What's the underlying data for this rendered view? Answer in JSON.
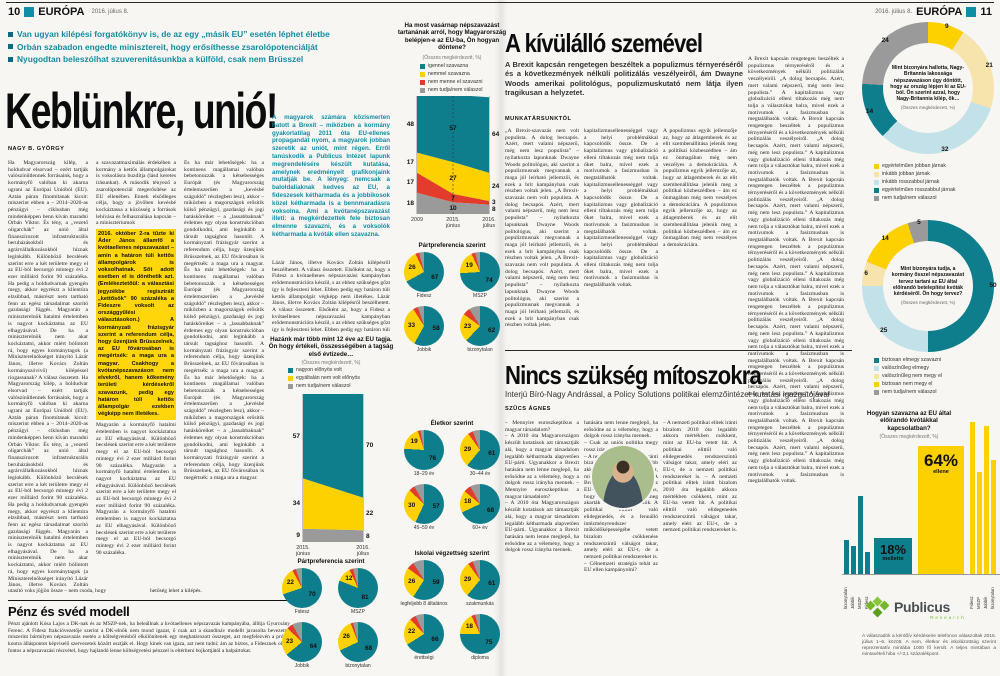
{
  "colors": {
    "teal": "#0e7e8c",
    "teal_bright": "#128da1",
    "yellow": "#fdd000",
    "red": "#e23c2d",
    "gray": "#9a9a9a",
    "cream": "#f7e3ac",
    "light_blue": "#c3e1e8",
    "highlight": "#ffd60a",
    "green": "#76b82a"
  },
  "left": {
    "page_number": "10",
    "brand": "EURÓPA",
    "date": "2016. július 8.",
    "bullets": [
      "Van ugyan kilépési forgatókönyv is, de az egy „másik EU” esetén léphet életbe",
      "Orbán szabadon engedte minisztereit, hogy erősíthesse zsarolópotenciálját",
      "Nyugodtan beleszólhat szuverenitásunkba a külföld, csak nem Brüsszel"
    ],
    "headline": "Keblünkre, unió!",
    "author": "NAGY B. GYÖRGY",
    "col1": "Ha Magyarország kilép, a holdudvar elsorvad – ezért tartják valószínűtlennek forrásaink, hogy a kormányfő valóban ki akarna ugrani az Európai Unióból (EU). Aztán páran finomítanak kicsit: miszerint ebben a – 2014–2020-as pénzügyi – ciklusban még mindenképpen benn kíván maradni Orbán Viktor. És tény, a „vezető oligarchák” az unió által finanszírozott infrastrukturális beruházásokból és agrárvállalkozásokból híznak leginkább. Különböző becslések szerint erre a két területre megy el az EU-ból becsorgó mintegy évi 2 ezer milliárd forint 90 százaléka. Ha pedig a holdudvarnak gyengén megy, akkor egyrészt a klientúra elzsibbad, másrészt nem tartható fenn az egész társadalmat szorító gazdasági függés. Magyarán a miniszterelnök hatalmi értelemben is nagyot kockáztatna az EU elhagyásával. De ha a miniszterelnök nem akar kockáztatni, akkor miért bólintott rá, hogy egyes kormánytagok (a Miniszterelnökséget irányító Lázár János, illetve Kovács Zoltán kormányszóvivő) kilépéssel riogassanak? A válasz összetett.",
    "col2a": "a szavazatmaximálás érdekében a kormány a kettős állampolgárokat is voksolásra buzdítja (lásd keretes írásunkat). A második tényező a zsarolópotenciál megerősítése az EU ellenében. Ennek elsődleges célja, hogy a jövőben kevésbé kockáztassa a közösség a források lehívása és felhasználása kapcsán – a minisztériumok",
    "highlight": "2016. október 2-ra tűzte ki Áder János államfő a kvótaellenes népszavazást – amin a határon túli kettős állampolgárok is voksolhatnak. Sőt adott esetben el is dönthetik azt. (Emlékeztetőül: a választási jegyzékbe regisztrált „kettősök” 90 százaléka a Fideszre voksolt az országgyűlési választásokon.) A kormányzati frázisgyár szerint a referendum célja, hogy üzenjünk Brüsszelnek, az EU fővárosában is megértsék: a maga ura a magyar. Csakhogy a kvótanépszavazáson nem elvekről, hanem kőkemény területi kérdésekről szavazunk, pedig egy határon túli kettős állampolgár ezekben végképp nem illetékes.",
    "col2b": "Magyarán a kormányfő hatalmi értelemben is nagyot kockáztatna az EU elhagyásával. Különböző becslések szerint erre a két területre megy el az EU-ból becsorgó mintegy évi 2 ezer milliárd forint 90 százaléka.",
    "col3": "És ha már lehetőségek: ha a kontinens magállamai valóban bebetonozzák a kétsebességes Európát (és Magyarország értelemszerűen a „kevésbé száguldó” részlegben lesz), akkor – miközben a magországok erősítik külső pénzügyi, gazdasági és jogi hatásköreiket – a „lassabbaknak” érdemes egy olyan konstrukcióban gondolkodni, ami leginkább a társult tagsághoz hasonlít. A kormányzati frázisgyár szerint a referendum célja, hogy üzenjünk Brüsszelnek, az EU fővárosában is megértsék: a maga ura a magyar.",
    "intro": "A magyarok számára közismerten hatott a Brexit – miközben a kormány gyakorlatilag 2011 óta EU-ellenes propagandát nyom, a magyarok jobban szeretik az uniót, mint régen. Erről tanúskodik a Publicus Intézet lapunk megrendelésére készült kutatása, amelynek eredményeit grafikonjaink mutatják be. A lényeg: nemcsak a baloldaliaknak kedves az EU, a fideszesek kétharmada és a jobbikosok közel kétharmada is a bennmaradásra voksolna. Ami a kvótanépszavazást illeti: a megkérdezettek fele biztosan elmenne szavazni, és a voksolók kétharmada a kvóták ellen szavazna.",
    "col4": "Lázár János, illetve Kovács Zoltán kilépésről beszélhetett. A válasz összetett. Elsőként az, hogy a Fidesz a kvótaellenes népszavazási kampányban erődemonstrációra készül, s az ehhez szükséges gőzt így is fejleszteni lehet. Ebben pedig egy határon túli kettős állampolgár végképp nem illetékes.",
    "colend1": "utasító voks jöjjön össze – nem csoda, hogy",
    "colend2": "hetőség lehet a kilépés.",
    "box_title": "Pénz és svéd modell",
    "box_text": "Pénzt ajánlott Kósa Lajos a DK-nak és az MSZP-nek, ha beleállnak a kvótaellenes népszavazás kampányába, állítja Gyurcsány Ferenc. A Fidesz frakcióvezetője szerint a DK-elnök nem mond igazat, ő csak azt a skandináv modellt javasolta bevezetni, miszerint bármilyen népszavazás esetén a költségvetésből elkülönítenek egy meghatározott összeget, azt megfelezvén a pró és kontra álláspontot képviselő szervezetek között osztják el. Hogy kinek van igaza, azt nem tudni; ám az biztos, a Fidesznek olyan fontos a népszavazási részvétel, hogy hajlandó lenne költségvetési pénzzel is eltéríteni bojkottjától a balpártokat."
  },
  "right": {
    "date": "2016. július 8.",
    "brand": "EURÓPA",
    "page_number": "11",
    "a1_headline": "A kívülálló szemével",
    "a1_lead": "A Brexit kapcsán rengetegen beszéltek a populizmus térnyeréséről és a következmények nélküli politizálás veszélyeiről, ám Dwayne Woods amerikai politológus, populizmuskutató nem látja ilyen tragikusan a helyzetet.",
    "a1_byline": "MUNKATÁRSUNKTÓL",
    "a1_col1": "„A Brexit-szavazás nem volt populista. A dolog becsapós. Azért, mert valami népszerű, még nem lesz populista” – nyilatkozta lapunknak Dwayne Woods politológus, aki szerint a populizmusnak megvannak a maga jól leírható jellemzői, és ezek a brit kampányban csak részben voltak jelen.",
    "a1_col2": "kapitalizmusellenességgel vagy a helyi problémákkal kapcsolódik össze. De a kapitalizmus vagy globalizáció elleni tiltakozás még nem tolja őket balra, mivel ezek a motívumok a fasizmusban is megtalálhatók voltak.",
    "a1_col3": "A populizmus egyik jellemzője az, hogy az átlagemberek és az elit szembenállítása jelenik meg a politikai közbeszédben – ám ez önmagában még nem veszélyes a demokráciára.",
    "a1_col4": "A Brexit kapcsán rengetegen beszéltek a populizmus térnyeréséről és a következmények nélküli politizálás veszélyeiről. „A dolog becsapós. Azért, mert valami népszerű, még nem lesz populista.” A kapitalizmus vagy globalizáció elleni tiltakozás még nem tolja a választókat balra, mivel ezek a motívumok a fasizmusban is megtalálhatók voltak.",
    "a2_headline": "Nincs szükség mítoszokra",
    "a2_subtitle": "Interjú Bíró-Nagy Andrással, a Policy Solutions politikai elemzőintézet kutatási igazgatójával",
    "a2_byline": "SZŰCS ÁGNES",
    "a2_col1": "– Mennyire euroszkeptikus a magyar társadalom?\n– A 2010 óta Magyarországon készült kutatások azt támasztják alá, hogy a magyar társadalom legalább kétharmada alapvetően EU-párti. Ugyanakkor a Brexit hatására nem lenne meglepő, ha erősödne az a vélemény, hogy a dolgok rossz irányba mennek.",
    "a2_col2": "hatására nem lenne meglepő, ha erősödne az a vélemény, hogy a dolgok rossz irányba mennek.\n– Csak az uniós politika megy rossz irányba?\n– A nemzeti politikai elitek iránti bizalom 2010 óta legalább akkora mértékben csökkent, mint az EU-ba vetett hit. A Brexit-népszavazás sem csak az EU-ról szólt, hanem arról is, hogy a westminsteri elitet meg akarták büntetni a választók. A politikai elittől való elidegenedés, és a fennálló intézményrendszer működőképességébe vetett bizalom csökkenése rendszerszintű válságot takar, amely eléri az EU-t, de a nemzeti politikai rendszereket is.\n– Célnemzeti stratégia tehát az EU ellen kampányolni?",
    "a2_col3": "– A nemzeti politikai elitek iránti bizalom 2010 óta legalább akkora mértékben csökkent, mint az EU-ba vetett hit. A politikai elittől való elidegenedés rendszerszintű válságot takar, amely eléri az EU-t, de a nemzeti politikai rendszereket is.",
    "publicus": "Publicus",
    "publicus_sub": "Research",
    "footnote": "A válaszadók a kérdőív kérdéseire telefonon válaszoltak 2016. július 1–6. között. A nem, életkor és iskolázottság szerint reprezentatív mintába 1000 fő került. A teljes mintában a mintavételi hiba +/-3,1 százalékpont."
  },
  "chart_data": [
    {
      "id": "eu_belepes",
      "type": "area",
      "title": "Ha most vasárnap népszavazást tartanának arról, hogy Magyarország belépjen-e az EU-ba, Ön hogyan döntene?",
      "subtitle": "(Összes megkérdezett, %)",
      "categories": [
        "2009",
        "2015. június",
        "2016. július"
      ],
      "ylim": [
        0,
        100
      ],
      "legend_position": "top",
      "series": [
        {
          "name": "igennel szavazna",
          "color": "teal",
          "values": [
            48,
            57,
            64
          ]
        },
        {
          "name": "nemmel szavazna",
          "color": "yellow",
          "values": [
            17,
            27,
            24
          ]
        },
        {
          "name": "nem menne el szavazni",
          "color": "red",
          "values": [
            17,
            7,
            3
          ]
        },
        {
          "name": "nem tudja/nem válaszol",
          "color": "gray",
          "values": [
            18,
            10,
            8
          ]
        }
      ]
    },
    {
      "id": "belepes_part",
      "type": "pie",
      "title": "Pártpreferencia szerint",
      "pies": [
        {
          "label": "Fidesz",
          "igen": 67,
          "nem": 26
        },
        {
          "label": "MSZP",
          "igen": 74,
          "nem": 19
        },
        {
          "label": "Jobbik",
          "igen": 58,
          "nem": 33
        },
        {
          "label": "bizonytalan",
          "igen": 62,
          "nem": 23
        }
      ]
    },
    {
      "id": "belepes_eletkor",
      "type": "pie",
      "title": "Életkor szerint",
      "pies": [
        {
          "label": "18–29 év",
          "igen": 76,
          "nem": 19
        },
        {
          "label": "30–44 év",
          "igen": 61,
          "nem": 29
        },
        {
          "label": "45–59 év",
          "igen": 57,
          "nem": 30
        },
        {
          "label": "60+ év",
          "igen": 68,
          "nem": 18
        }
      ]
    },
    {
      "id": "belepes_iskola",
      "type": "pie",
      "title": "Iskolai végzettség szerint",
      "pies": [
        {
          "label": "legfeljebb 8 általános",
          "igen": 59,
          "nem": 26
        },
        {
          "label": "szakmunkás",
          "igen": 61,
          "nem": 29
        },
        {
          "label": "érettségi",
          "igen": 66,
          "nem": 22
        },
        {
          "label": "diploma",
          "igen": 75,
          "nem": 18
        }
      ]
    },
    {
      "id": "tagsag",
      "type": "area",
      "title": "Hazánk már több mint 12 éve az EU tagja. Ön hogy értékeli, összességében a tagság első évtizede…",
      "subtitle": "(Összes megkérdezett, %)",
      "categories": [
        "2015. június",
        "2016. július"
      ],
      "ylim": [
        0,
        100
      ],
      "series": [
        {
          "name": "nagyon előnyös volt",
          "color": "teal",
          "values": [
            57,
            70
          ]
        },
        {
          "name": "egyáltalán nem volt előnyös",
          "color": "yellow",
          "values": [
            34,
            22
          ]
        },
        {
          "name": "nem tudja/nem válaszol",
          "color": "gray",
          "values": [
            9,
            8
          ]
        }
      ]
    },
    {
      "id": "tagsag_part",
      "type": "pie",
      "title": "Pártpreferencia szerint",
      "pies": [
        {
          "label": "Fidesz",
          "igen": 70,
          "nem": 22
        },
        {
          "label": "MSZP",
          "igen": 81,
          "nem": 12
        },
        {
          "label": "Jobbik",
          "igen": 64,
          "nem": 23
        },
        {
          "label": "bizonytalan",
          "igen": 68,
          "nem": 26
        }
      ]
    },
    {
      "id": "brexit_donut",
      "type": "pie",
      "title": "Mint bizonyára hallotta, Nagy-Britannia lakossága népszavazáson úgy döntött, hogy az ország lépjen ki az EU-ból. Ön szerint azzal, hogy Nagy-Britannia kilép, ők…",
      "subtitle": "(Összes megkérdezett, %)",
      "segments": [
        {
          "label": "egyértelműen jobban járnak",
          "color": "yellow",
          "value": 9
        },
        {
          "label": "inkább jobban járnak",
          "color": "cream",
          "value": 21
        },
        {
          "label": "inkább rosszabbul járnak",
          "color": "light_blue",
          "value": 32
        },
        {
          "label": "egyértelműen rosszabbul járnak",
          "color": "teal",
          "value": 14
        },
        {
          "label": "nem tudja/nem válaszol",
          "color": "gray",
          "value": 24
        }
      ]
    },
    {
      "id": "kvota_donut",
      "type": "pie",
      "title": "Mint bizonyára tudja, a kormány ősszel népszavazást tervez tartani az EU által előírandó betelepítési kvóták kérdéséről. Ön hogy tervez?",
      "subtitle": "(Összes megkérdezett, %)",
      "segments": [
        {
          "label": "biztosan elmegy szavazni",
          "color": "teal",
          "value": 50
        },
        {
          "label": "valószínűleg elmegy",
          "color": "light_blue",
          "value": 25
        },
        {
          "label": "valószínűleg nem megy el",
          "color": "cream",
          "value": 6
        },
        {
          "label": "biztosan nem megy el",
          "color": "yellow",
          "value": 14
        },
        {
          "label": "nem tudja/nem válaszol",
          "color": "gray",
          "value": 5
        }
      ]
    },
    {
      "id": "kvota_bars",
      "type": "bar",
      "title": "Hogyan szavazna az EU által előírandó kvótákkal kapcsolatban?",
      "subtitle": "(Összes megkérdezett, %)",
      "note": "party bar values estimated from bar heights",
      "groups": [
        {
          "label": "mellette",
          "value": 18,
          "color": "teal",
          "party_bars": [
            {
              "label": "bizonytalan",
              "value": 17
            },
            {
              "label": "Jobbik",
              "value": 14
            },
            {
              "label": "MSZP",
              "value": 39
            },
            {
              "label": "Fidesz",
              "value": 11
            }
          ]
        },
        {
          "label": "ellene",
          "value": 64,
          "color": "yellow",
          "party_bars": [
            {
              "label": "Fidesz",
              "value": 76
            },
            {
              "label": "MSZP",
              "value": 51
            },
            {
              "label": "Jobbik",
              "value": 74
            },
            {
              "label": "bizonytalan",
              "value": 57
            }
          ]
        }
      ]
    }
  ]
}
